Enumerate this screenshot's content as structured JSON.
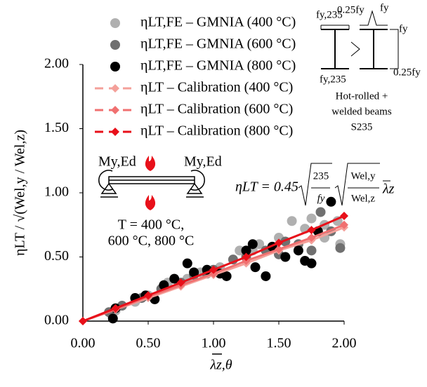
{
  "chart_data": {
    "type": "scatter",
    "xlabel": "λz,θ",
    "ylabel": "ηLT / √(Wel,y / Wel,z)",
    "xlim": [
      0,
      2
    ],
    "ylim": [
      0,
      2
    ],
    "xticks": [
      {
        "value": 0,
        "label": "0.00"
      },
      {
        "value": 0.5,
        "label": "0.50"
      },
      {
        "value": 1,
        "label": "1.00"
      },
      {
        "value": 1.5,
        "label": "1.50"
      },
      {
        "value": 2,
        "label": "2.00"
      }
    ],
    "yticks": [
      {
        "value": 0,
        "label": "0.00"
      },
      {
        "value": 0.5,
        "label": "0.50"
      },
      {
        "value": 1,
        "label": "1.00"
      },
      {
        "value": 1.5,
        "label": "1.50"
      },
      {
        "value": 2,
        "label": "2.00"
      }
    ],
    "series": [
      {
        "name": "ηLT,FE – GMNIA (400 °C)",
        "kind": "points",
        "color": "#b0b0b0",
        "x": [
          0.22,
          0.25,
          0.4,
          0.5,
          0.65,
          0.8,
          0.9,
          1.05,
          1.2,
          1.3,
          1.35,
          1.5,
          1.6,
          1.7,
          1.75,
          1.85,
          1.95,
          1.97,
          1.85,
          1.45
        ],
        "values": [
          0.05,
          0.08,
          0.15,
          0.2,
          0.3,
          0.33,
          0.38,
          0.42,
          0.55,
          0.55,
          0.6,
          0.65,
          0.78,
          0.72,
          0.8,
          0.65,
          0.78,
          0.6,
          0.75,
          0.58
        ]
      },
      {
        "name": "ηLT,FE – GMNIA (600 °C)",
        "kind": "points",
        "color": "#707070",
        "x": [
          0.2,
          0.3,
          0.45,
          0.6,
          0.75,
          0.85,
          1.0,
          1.15,
          1.25,
          1.4,
          1.5,
          1.65,
          1.75,
          1.82,
          1.9,
          1.97,
          1.55,
          0.95
        ],
        "values": [
          0.07,
          0.12,
          0.18,
          0.25,
          0.3,
          0.36,
          0.4,
          0.48,
          0.5,
          0.55,
          0.52,
          0.6,
          0.55,
          0.85,
          0.7,
          0.57,
          0.62,
          0.37
        ]
      },
      {
        "name": "ηLT,FE – GMNIA (800 °C)",
        "kind": "points",
        "color": "#000000",
        "x": [
          0.23,
          0.25,
          0.4,
          0.48,
          0.62,
          0.7,
          0.85,
          0.95,
          1.05,
          1.1,
          1.25,
          1.32,
          1.4,
          1.45,
          1.55,
          1.65,
          1.7,
          1.75,
          1.8,
          1.9,
          1.3,
          0.8,
          0.55
        ],
        "values": [
          0.02,
          0.1,
          0.18,
          0.2,
          0.28,
          0.33,
          0.38,
          0.4,
          0.37,
          0.35,
          0.55,
          0.42,
          0.35,
          0.58,
          0.5,
          0.55,
          0.47,
          0.45,
          0.7,
          0.93,
          0.6,
          0.45,
          0.17
        ]
      },
      {
        "name": "ηLT – Calibration (400 °C)",
        "kind": "line",
        "color": "#f4a09a",
        "x": [
          0,
          0.25,
          0.5,
          0.75,
          1.0,
          1.25,
          1.5,
          1.75,
          2.0
        ],
        "values": [
          0,
          0.09,
          0.18,
          0.27,
          0.36,
          0.45,
          0.55,
          0.63,
          0.73
        ]
      },
      {
        "name": "ηLT – Calibration (600 °C)",
        "kind": "line",
        "color": "#f07070",
        "x": [
          0,
          0.25,
          0.5,
          0.75,
          1.0,
          1.25,
          1.5,
          1.75,
          2.0
        ],
        "values": [
          0,
          0.09,
          0.19,
          0.28,
          0.37,
          0.47,
          0.56,
          0.65,
          0.75
        ]
      },
      {
        "name": "ηLT – Calibration (800 °C)",
        "kind": "line",
        "color": "#e8101a",
        "x": [
          0,
          0.25,
          0.5,
          0.75,
          1.0,
          1.25,
          1.5,
          1.75,
          2.0
        ],
        "values": [
          0,
          0.1,
          0.2,
          0.3,
          0.4,
          0.5,
          0.61,
          0.71,
          0.82
        ]
      }
    ],
    "annotations": {
      "formula_lhs": "ηLT = 0.45",
      "formula_n1": "235",
      "formula_d1": "fy",
      "formula_n2": "Wel,y",
      "formula_d2": "Wel,z",
      "formula_tail": "λz",
      "moment_left": "My,Ed",
      "moment_right": "My,Ed",
      "temp_line1": "T = 400 °C,",
      "temp_line2": "600 °C, 800 °C",
      "section_fy235_top": "fy,235",
      "section_025fy_top": "0.25fy",
      "section_fy_top": "fy",
      "section_fy_right": "fy",
      "section_fy235_bottom": "fy,235",
      "section_025fy_bottom": "0.25fy",
      "section_line1": "Hot-rolled +",
      "section_line2": "welded beams",
      "section_line3": "S235"
    }
  }
}
